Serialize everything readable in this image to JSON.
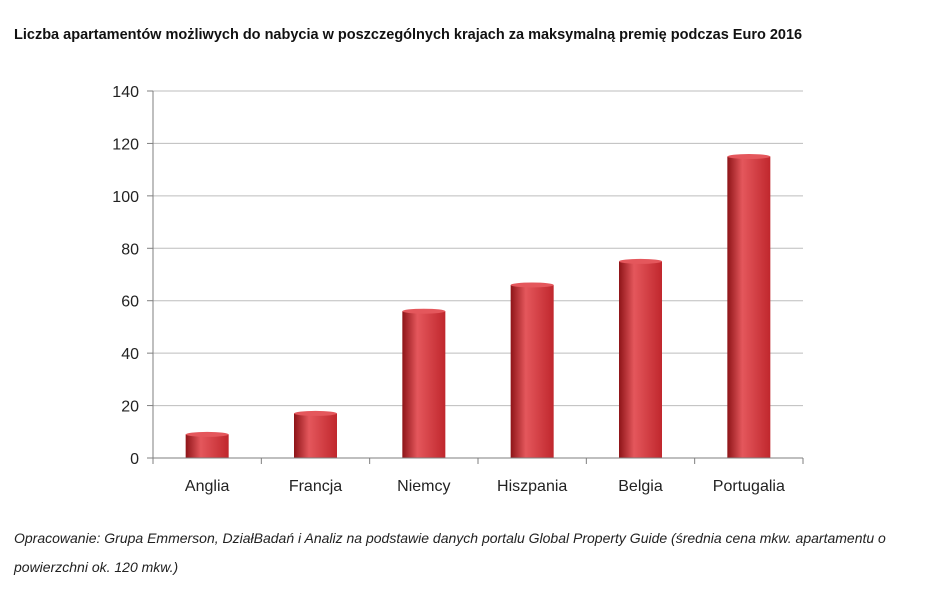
{
  "chart_data": {
    "type": "bar",
    "title": "Liczba apartamentów możliwych do nabycia  w poszczególnych krajach za maksymalną premię podczas Euro 2016",
    "categories": [
      "Anglia",
      "Francja",
      "Niemcy",
      "Hiszpania",
      "Belgia",
      "Portugalia"
    ],
    "values": [
      9,
      17,
      56,
      66,
      75,
      115
    ],
    "ylim": [
      0,
      140
    ],
    "yticks": [
      0,
      20,
      40,
      60,
      80,
      100,
      120,
      140
    ],
    "grid": true,
    "legend": "none",
    "colors": {
      "bar": "#c0272d",
      "bar_light": "#e4575c",
      "bar_dark": "#8e1418",
      "grid": "#bdbdbd",
      "axis": "#7f7f7f"
    }
  },
  "footnote": "Opracowanie: Grupa Emmerson, DziałBadań i Analiz na podstawie danych portalu Global Property Guide (średnia cena mkw. apartamentu o powierzchni ok. 120 mkw.)"
}
